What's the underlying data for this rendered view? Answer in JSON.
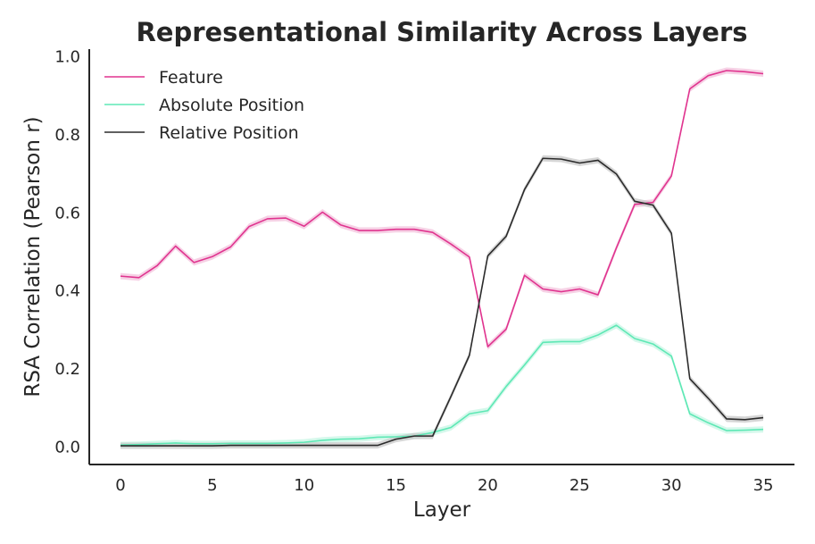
{
  "chart_data": {
    "type": "line",
    "title": "Representational Similarity Across Layers",
    "xlabel": "Layer",
    "ylabel": "RSA Correlation (Pearson r)",
    "xlim": [
      -1.7,
      36.7
    ],
    "ylim": [
      -0.045,
      1.02
    ],
    "xticks": [
      0,
      5,
      10,
      15,
      20,
      25,
      30,
      35
    ],
    "yticks": [
      0.0,
      0.2,
      0.4,
      0.6,
      0.8,
      1.0
    ],
    "xtick_labels": [
      "0",
      "5",
      "10",
      "15",
      "20",
      "25",
      "30",
      "35"
    ],
    "ytick_labels": [
      "0.0",
      "0.2",
      "0.4",
      "0.6",
      "0.8",
      "1.0"
    ],
    "grid": false,
    "legend_position": "top-left",
    "x": [
      0,
      1,
      2,
      3,
      4,
      5,
      6,
      7,
      8,
      9,
      10,
      11,
      12,
      13,
      14,
      15,
      16,
      17,
      18,
      19,
      20,
      21,
      22,
      23,
      24,
      25,
      26,
      27,
      28,
      29,
      30,
      31,
      32,
      33,
      34,
      35
    ],
    "series": [
      {
        "name": "Feature",
        "color": "#e0348f",
        "band_color": "#f3c2dc",
        "values": [
          0.438,
          0.434,
          0.465,
          0.515,
          0.473,
          0.488,
          0.513,
          0.565,
          0.585,
          0.587,
          0.566,
          0.602,
          0.569,
          0.555,
          0.555,
          0.558,
          0.558,
          0.55,
          0.52,
          0.487,
          0.257,
          0.302,
          0.44,
          0.405,
          0.398,
          0.405,
          0.39,
          0.51,
          0.622,
          0.627,
          0.695,
          0.918,
          0.952,
          0.965,
          0.962,
          0.957
        ]
      },
      {
        "name": "Absolute Position",
        "color": "#5ee8b5",
        "band_color": "#c7f5e4",
        "values": [
          0.005,
          0.006,
          0.008,
          0.01,
          0.008,
          0.008,
          0.009,
          0.009,
          0.009,
          0.01,
          0.012,
          0.017,
          0.02,
          0.021,
          0.025,
          0.026,
          0.028,
          0.037,
          0.05,
          0.085,
          0.093,
          0.155,
          0.21,
          0.268,
          0.27,
          0.27,
          0.287,
          0.312,
          0.278,
          0.264,
          0.233,
          0.085,
          0.062,
          0.042,
          0.043,
          0.045
        ]
      },
      {
        "name": "Relative Position",
        "color": "#2b2b2b",
        "band_color": "#c8c8c8",
        "values": [
          0.003,
          0.003,
          0.003,
          0.003,
          0.003,
          0.003,
          0.004,
          0.004,
          0.004,
          0.004,
          0.004,
          0.004,
          0.004,
          0.004,
          0.004,
          0.02,
          0.028,
          0.028,
          0.13,
          0.235,
          0.49,
          0.54,
          0.66,
          0.74,
          0.738,
          0.728,
          0.735,
          0.7,
          0.63,
          0.62,
          0.548,
          0.175,
          0.125,
          0.072,
          0.07,
          0.075
        ]
      }
    ]
  }
}
